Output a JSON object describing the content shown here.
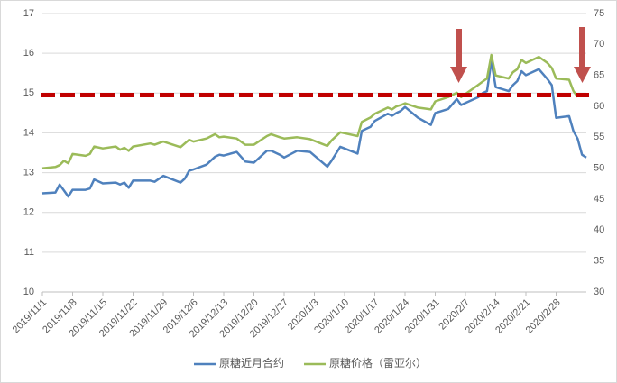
{
  "chart_data": {
    "type": "line",
    "x": [
      "2019/11/1",
      "2019/11/4",
      "2019/11/5",
      "2019/11/6",
      "2019/11/7",
      "2019/11/8",
      "2019/11/11",
      "2019/11/12",
      "2019/11/13",
      "2019/11/15",
      "2019/11/18",
      "2019/11/19",
      "2019/11/20",
      "2019/11/21",
      "2019/11/22",
      "2019/11/26",
      "2019/11/27",
      "2019/11/29",
      "2019/12/3",
      "2019/12/4",
      "2019/12/5",
      "2019/12/6",
      "2019/12/9",
      "2019/12/11",
      "2019/12/12",
      "2019/12/13",
      "2019/12/16",
      "2019/12/18",
      "2019/12/20",
      "2019/12/23",
      "2019/12/24",
      "2019/12/26",
      "2019/12/27",
      "2019/12/30",
      "2020/1/2",
      "2020/1/6",
      "2020/1/7",
      "2020/1/9",
      "2020/1/13",
      "2020/1/14",
      "2020/1/16",
      "2020/1/17",
      "2020/1/20",
      "2020/1/21",
      "2020/1/22",
      "2020/1/23",
      "2020/1/24",
      "2020/1/27",
      "2020/1/30",
      "2020/1/31",
      "2020/2/3",
      "2020/2/5",
      "2020/2/6",
      "2020/2/7",
      "2020/2/10",
      "2020/2/11",
      "2020/2/12",
      "2020/2/13",
      "2020/2/14",
      "2020/2/17",
      "2020/2/18",
      "2020/2/19",
      "2020/2/20",
      "2020/2/21",
      "2020/2/24",
      "2020/2/26",
      "2020/2/27",
      "2020/2/28",
      "2020/3/2",
      "2020/3/3",
      "2020/3/4",
      "2020/3/5",
      "2020/3/6"
    ],
    "series": [
      {
        "name": "原糖近月合约",
        "color": "#4f81bd",
        "values": [
          12.48,
          12.5,
          12.7,
          12.55,
          12.4,
          12.57,
          12.57,
          12.6,
          12.83,
          12.73,
          12.75,
          12.7,
          12.75,
          12.62,
          12.8,
          12.8,
          12.77,
          12.92,
          12.75,
          12.85,
          13.05,
          13.08,
          13.2,
          13.4,
          13.45,
          13.43,
          13.52,
          13.28,
          13.25,
          13.55,
          13.55,
          13.45,
          13.38,
          13.55,
          13.52,
          13.15,
          13.3,
          13.65,
          13.48,
          14.05,
          14.15,
          14.3,
          14.48,
          14.43,
          14.5,
          14.55,
          14.65,
          14.38,
          14.2,
          14.5,
          14.6,
          14.85,
          14.7,
          14.75,
          14.9,
          15.0,
          15.05,
          15.8,
          15.15,
          15.05,
          15.2,
          15.3,
          15.55,
          15.45,
          15.6,
          15.35,
          15.2,
          14.38,
          14.42,
          14.05,
          13.85,
          13.45,
          13.38
        ]
      },
      {
        "name": "原糖价格（雷亚尔）",
        "color": "#9bbb59",
        "axis": "y2",
        "values": [
          50.0,
          50.2,
          50.5,
          51.2,
          50.8,
          52.3,
          52.0,
          52.3,
          53.5,
          53.2,
          53.5,
          53.0,
          53.3,
          52.8,
          53.5,
          54.0,
          53.8,
          54.3,
          53.4,
          54.0,
          54.6,
          54.3,
          54.8,
          55.5,
          55.0,
          55.1,
          54.8,
          53.8,
          53.8,
          55.2,
          55.5,
          55.0,
          54.8,
          55.0,
          54.7,
          53.6,
          54.5,
          55.8,
          55.2,
          57.5,
          58.2,
          58.8,
          59.8,
          59.5,
          60.0,
          60.2,
          60.5,
          59.8,
          59.5,
          60.8,
          61.5,
          62.2,
          61.5,
          62.0,
          63.5,
          64.0,
          64.5,
          68.3,
          65.0,
          64.5,
          65.5,
          66.0,
          67.5,
          67.0,
          68.0,
          67.0,
          66.2,
          64.5,
          64.3,
          62.5,
          61.5,
          null,
          null
        ]
      }
    ],
    "xlim": [
      "2019/11/1",
      "2020/3/6"
    ],
    "xticks": [
      "2019/11/1",
      "2019/11/8",
      "2019/11/15",
      "2019/11/22",
      "2019/11/29",
      "2019/12/6",
      "2019/12/13",
      "2019/12/20",
      "2019/12/27",
      "2020/1/3",
      "2020/1/10",
      "2020/1/17",
      "2020/1/24",
      "2020/1/31",
      "2020/2/7",
      "2020/2/14",
      "2020/2/21",
      "2020/2/28"
    ],
    "ylim": [
      10,
      17
    ],
    "yticks": [
      10,
      11,
      12,
      13,
      14,
      15,
      16,
      17
    ],
    "y2lim": [
      30,
      75
    ],
    "y2ticks": [
      30,
      35,
      40,
      45,
      50,
      55,
      60,
      65,
      70,
      75
    ],
    "hline": 14.95,
    "hline_color": "#c00000",
    "grid": true,
    "legend": "bottom"
  }
}
